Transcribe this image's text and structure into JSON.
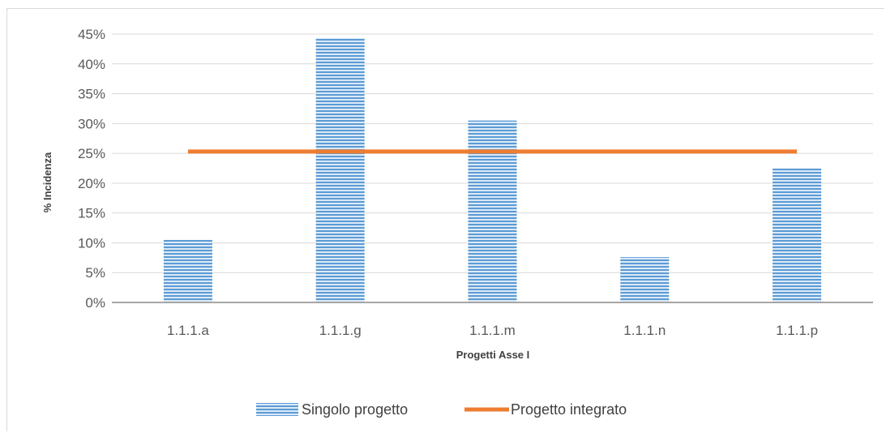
{
  "chart_data": {
    "type": "bar",
    "categories": [
      "1.1.1.a",
      "1.1.1.g",
      "1.1.1.m",
      "1.1.1.n",
      "1.1.1.p"
    ],
    "series": [
      {
        "name": "Singolo progetto",
        "type": "bar",
        "values": [
          10.5,
          44.3,
          30.5,
          7.6,
          22.5
        ]
      },
      {
        "name": "Progetto integrato",
        "type": "line",
        "values": [
          25.3,
          25.3,
          25.3,
          25.3,
          25.3
        ]
      }
    ],
    "xlabel": "Progetti Asse I",
    "ylabel": "% Incidenza",
    "ylim": [
      0,
      45
    ],
    "yticks": [
      "0%",
      "5%",
      "10%",
      "15%",
      "20%",
      "25%",
      "30%",
      "35%",
      "40%",
      "45%"
    ],
    "grid": true,
    "legend_position": "bottom",
    "colors": {
      "bar": "#5b9bd5",
      "bar_stripe": "#dce9f6",
      "line": "#ed7d31",
      "grid": "#d9d9d9",
      "axis": "#a6a6a6"
    }
  }
}
